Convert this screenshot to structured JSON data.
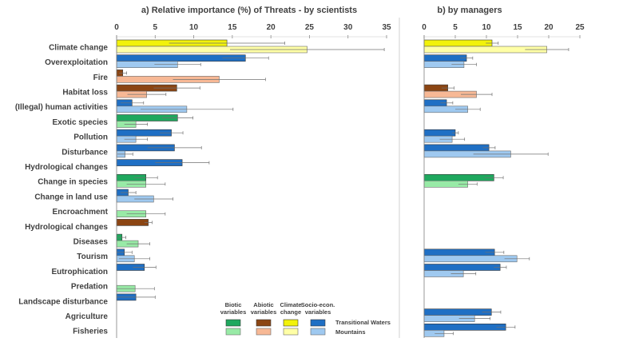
{
  "chart_data": [
    {
      "type": "bar",
      "orientation": "horizontal",
      "title": "a) Relative importance (%) of Threats  - by scientists",
      "xlim": [
        0,
        35
      ],
      "xticks": [
        0,
        5,
        10,
        15,
        20,
        25,
        30,
        35
      ],
      "categories": [
        "Climate change",
        "Overexploitation",
        "Fire",
        "Habitat loss",
        "(Illegal) human activities",
        "Exotic species",
        "Pollution",
        "Disturbance",
        "Hydrological changes",
        "Change in species",
        "Change in land use",
        "Encroachment",
        "Hydrological changes",
        "Diseases",
        "Tourism",
        "Eutrophication",
        "Predation",
        "Landscape disturbance",
        "Agriculture",
        "Fisheries"
      ],
      "category_groups": [
        "Climate change",
        "Socio-econ.",
        "Abiotic",
        "Abiotic",
        "Socio-econ.",
        "Biotic",
        "Socio-econ.",
        "Socio-econ.",
        "Socio-econ.",
        "Biotic",
        "Socio-econ.",
        "Biotic",
        "Abiotic",
        "Biotic",
        "Socio-econ.",
        "Socio-econ.",
        "Biotic",
        "Socio-econ.",
        "Socio-econ.",
        "Socio-econ."
      ],
      "series": [
        {
          "name": "Transitional Waters",
          "values": [
            14.3,
            16.7,
            0.8,
            7.8,
            2.0,
            7.9,
            7.1,
            7.5,
            8.5,
            3.8,
            1.5,
            null,
            4.1,
            0.7,
            1.0,
            3.6,
            null,
            2.5,
            null,
            null
          ],
          "error": [
            7.5,
            3.0,
            0.5,
            3.0,
            1.5,
            2.0,
            1.5,
            3.5,
            3.5,
            1.5,
            1.0,
            null,
            0.5,
            0.5,
            1.0,
            1.5,
            null,
            2.5,
            null,
            null
          ]
        },
        {
          "name": "Mountains",
          "values": [
            24.7,
            7.9,
            13.3,
            3.9,
            9.1,
            2.5,
            2.5,
            1.1,
            null,
            3.8,
            4.8,
            3.8,
            null,
            2.8,
            2.3,
            null,
            2.4,
            null,
            null,
            null
          ],
          "error": [
            10.0,
            3.0,
            6.0,
            2.5,
            6.0,
            1.5,
            1.5,
            1.0,
            null,
            2.5,
            2.5,
            2.5,
            null,
            1.5,
            2.0,
            null,
            2.5,
            null,
            null,
            null
          ]
        }
      ]
    },
    {
      "type": "bar",
      "orientation": "horizontal",
      "title": "b)  by managers",
      "xlim": [
        0,
        25
      ],
      "xticks": [
        0,
        5,
        10,
        15,
        20,
        25
      ],
      "categories": [
        "Climate change",
        "Overexploitation",
        "Fire",
        "Habitat loss",
        "(Illegal) human activities",
        "Exotic species",
        "Pollution",
        "Disturbance",
        "Hydrological changes",
        "Change in species",
        "Change in land use",
        "Encroachment",
        "Hydrological changes",
        "Diseases",
        "Tourism",
        "Eutrophication",
        "Predation",
        "Landscape disturbance",
        "Agriculture",
        "Fisheries"
      ],
      "series": [
        {
          "name": "Transitional Waters",
          "values": [
            10.9,
            6.8,
            null,
            3.8,
            3.6,
            null,
            5.0,
            10.4,
            null,
            11.2,
            null,
            null,
            null,
            null,
            11.3,
            12.2,
            null,
            null,
            10.8,
            13.1
          ],
          "error": [
            1.0,
            1.0,
            null,
            1.0,
            1.0,
            null,
            0.5,
            1.0,
            null,
            1.5,
            null,
            null,
            null,
            null,
            1.5,
            1.0,
            null,
            null,
            1.5,
            1.5
          ]
        },
        {
          "name": "Mountains",
          "values": [
            19.7,
            6.4,
            null,
            8.4,
            7.0,
            null,
            4.5,
            13.9,
            null,
            7.0,
            null,
            null,
            null,
            null,
            14.9,
            6.3,
            null,
            null,
            8.1,
            3.2
          ],
          "error": [
            3.5,
            2.0,
            null,
            2.5,
            2.0,
            null,
            2.0,
            6.0,
            null,
            1.5,
            null,
            null,
            null,
            null,
            2.0,
            2.0,
            null,
            null,
            2.5,
            1.5
          ]
        }
      ]
    }
  ],
  "legend": {
    "groups": [
      {
        "label": "Biotic variables",
        "tw_color": "#1fa85e",
        "mt_color": "#98eaa6"
      },
      {
        "label": "Abiotic variables",
        "tw_color": "#8b4513",
        "mt_color": "#f7b895"
      },
      {
        "label": "Climate change",
        "tw_color": "#f2f20a",
        "mt_color": "#ffffa6"
      },
      {
        "label": "Socio-econ. variables",
        "tw_color": "#1f6fc4",
        "mt_color": "#9fc9f0"
      }
    ],
    "series_labels": [
      "Transitional Waters",
      "Mountains"
    ]
  }
}
